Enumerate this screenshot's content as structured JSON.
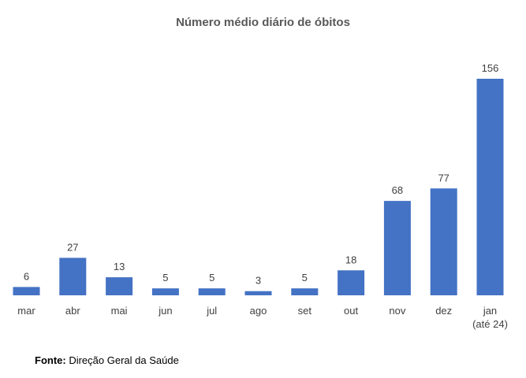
{
  "chart_data": {
    "type": "bar",
    "title": "Número médio diário de óbitos",
    "categories": [
      "mar",
      "abr",
      "mai",
      "jun",
      "jul",
      "ago",
      "set",
      "out",
      "nov",
      "dez",
      [
        "jan",
        "(até 24)"
      ]
    ],
    "values": [
      6,
      27,
      13,
      5,
      5,
      3,
      5,
      18,
      68,
      77,
      156
    ],
    "ylim": [
      0,
      156
    ],
    "grid": false,
    "bar_color": "#4472C4",
    "data_labels": true
  },
  "source": {
    "label": "Fonte:",
    "text": " Direção Geral da Saúde"
  }
}
